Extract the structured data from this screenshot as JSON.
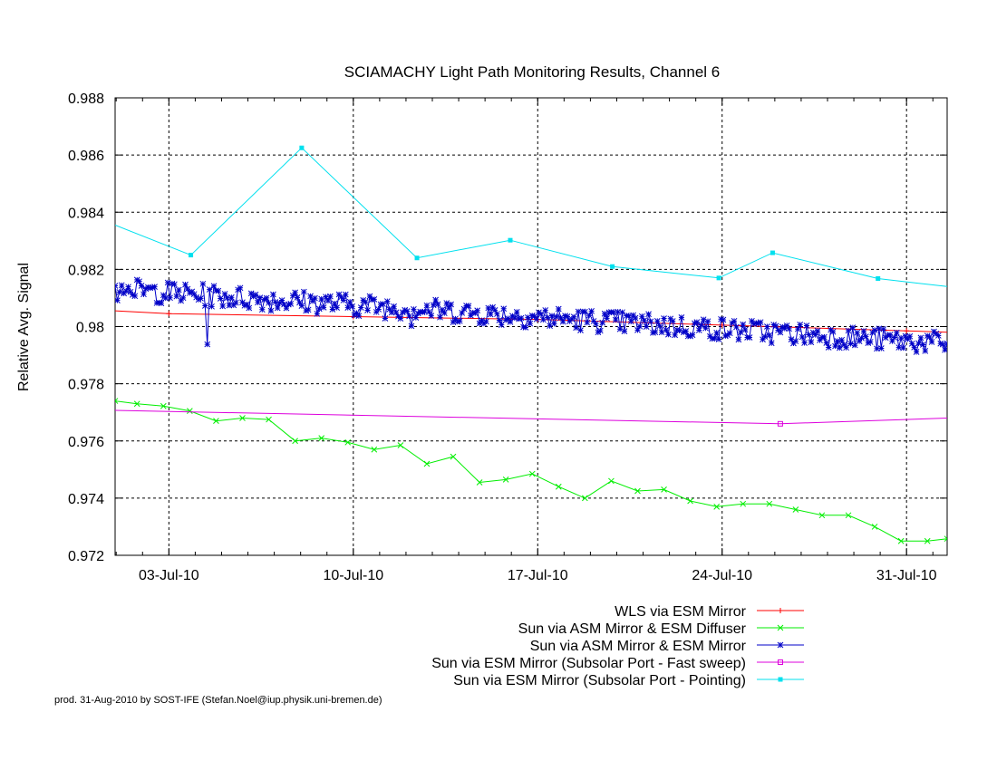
{
  "chart_data": {
    "type": "line",
    "title": "SCIAMACHY Light Path Monitoring Results, Channel 6",
    "xlabel": "",
    "ylabel": "Relative Avg. Signal",
    "xlim": [
      "2010-06-30T23:00",
      "2010-08-01T13:00"
    ],
    "ylim": [
      0.972,
      0.988
    ],
    "x_ticks": [
      "2010-07-03",
      "2010-07-10",
      "2010-07-17",
      "2010-07-24",
      "2010-07-31"
    ],
    "x_tick_labels": [
      "03-Jul-10",
      "10-Jul-10",
      "17-Jul-10",
      "24-Jul-10",
      "31-Jul-10"
    ],
    "y_ticks": [
      0.972,
      0.974,
      0.976,
      0.978,
      0.98,
      0.982,
      0.984,
      0.986,
      0.988
    ],
    "y_tick_labels": [
      "0.972",
      "0.974",
      "0.976",
      "0.978",
      "0.98",
      "0.982",
      "0.984",
      "0.986",
      "0.988"
    ],
    "grid": true,
    "legend_position": "bottom-right",
    "footer": "prod. 31-Aug-2010 by SOST-IFE (Stefan.Noel@iup.physik.uni-bremen.de)",
    "series": [
      {
        "name": "WLS via ESM Mirror",
        "color": "#ff0000",
        "marker": "plus",
        "x": [
          "2010-06-30T23:00",
          "2010-07-03T00:00",
          "2010-07-10T00:00",
          "2010-07-17T00:00",
          "2010-07-24T00:00",
          "2010-07-31T00:00",
          "2010-08-01T13:00"
        ],
        "y": [
          0.98055,
          0.98045,
          0.98035,
          0.98025,
          0.98005,
          0.97985,
          0.9798
        ],
        "marked": [
          1,
          2,
          3,
          4,
          5
        ]
      },
      {
        "name": "Sun via ASM Mirror & ESM Diffuser",
        "color": "#00ee00",
        "marker": "x",
        "x": [
          "2010-06-30T23:00",
          "2010-07-01T19:00",
          "2010-07-02T19:00",
          "2010-07-03T19:00",
          "2010-07-04T19:00",
          "2010-07-05T19:00",
          "2010-07-06T19:00",
          "2010-07-07T19:00",
          "2010-07-08T19:00",
          "2010-07-09T19:00",
          "2010-07-10T19:00",
          "2010-07-11T19:00",
          "2010-07-12T19:00",
          "2010-07-13T19:00",
          "2010-07-14T19:00",
          "2010-07-15T19:00",
          "2010-07-16T19:00",
          "2010-07-17T19:00",
          "2010-07-18T19:00",
          "2010-07-19T19:00",
          "2010-07-20T19:00",
          "2010-07-21T19:00",
          "2010-07-22T19:00",
          "2010-07-23T19:00",
          "2010-07-24T19:00",
          "2010-07-25T19:00",
          "2010-07-26T19:00",
          "2010-07-27T19:00",
          "2010-07-28T19:00",
          "2010-07-29T19:00",
          "2010-07-30T19:00",
          "2010-07-31T19:00",
          "2010-08-01T13:00"
        ],
        "y": [
          0.9774,
          0.9773,
          0.97722,
          0.97705,
          0.9767,
          0.9768,
          0.97675,
          0.976,
          0.9761,
          0.97595,
          0.9757,
          0.97585,
          0.9752,
          0.97545,
          0.97455,
          0.97465,
          0.97485,
          0.9744,
          0.974,
          0.9746,
          0.97425,
          0.9743,
          0.9739,
          0.9737,
          0.9738,
          0.9738,
          0.9736,
          0.9734,
          0.9734,
          0.973,
          0.9725,
          0.9725,
          0.97258
        ]
      },
      {
        "name": "Sun via ASM Mirror & ESM Mirror",
        "color": "#0000c8",
        "marker": "star",
        "x": [
          "2010-06-30T23:00",
          "2010-08-01T13:00"
        ],
        "y": [
          0.9813,
          0.9794
        ],
        "dense": true,
        "noise_amplitude": 0.0004,
        "outliers": [
          {
            "x": "2010-07-02T04:00",
            "y": 0.97985
          },
          {
            "x": "2010-07-04T11:00",
            "y": 0.97938
          },
          {
            "x": "2010-07-05T06:00",
            "y": 0.97962
          },
          {
            "x": "2010-07-12T05:00",
            "y": 0.98002
          },
          {
            "x": "2010-07-18T06:00",
            "y": 0.97975
          },
          {
            "x": "2010-07-19T22:00",
            "y": 0.97965
          },
          {
            "x": "2010-07-27T18:00",
            "y": 0.97882
          },
          {
            "x": "2010-07-31T02:00",
            "y": 0.97912
          },
          {
            "x": "2010-07-31T22:00",
            "y": 0.9791
          }
        ]
      },
      {
        "name": "Sun via ESM Mirror (Subsolar Port - Fast sweep)",
        "color": "#dd00dd",
        "marker": "square-open",
        "x": [
          "2010-06-30T23:00",
          "2010-07-26T05:00",
          "2010-08-01T13:00"
        ],
        "y": [
          0.97707,
          0.9766,
          0.9768
        ],
        "marked": [
          1
        ]
      },
      {
        "name": "Sun via ESM Mirror (Subsolar Port - Pointing)",
        "color": "#00e0ee",
        "marker": "square-filled",
        "x": [
          "2010-06-30T23:00",
          "2010-07-03T20:00",
          "2010-07-08T01:00",
          "2010-07-12T10:00",
          "2010-07-15T23:00",
          "2010-07-19T20:00",
          "2010-07-23T21:00",
          "2010-07-25T22:00",
          "2010-07-29T22:00",
          "2010-08-01T13:00"
        ],
        "y": [
          0.98355,
          0.9825,
          0.98625,
          0.9824,
          0.98302,
          0.9821,
          0.9817,
          0.98258,
          0.98168,
          0.9814
        ],
        "marked": [
          1,
          2,
          3,
          4,
          5,
          6,
          7,
          8
        ]
      }
    ]
  }
}
